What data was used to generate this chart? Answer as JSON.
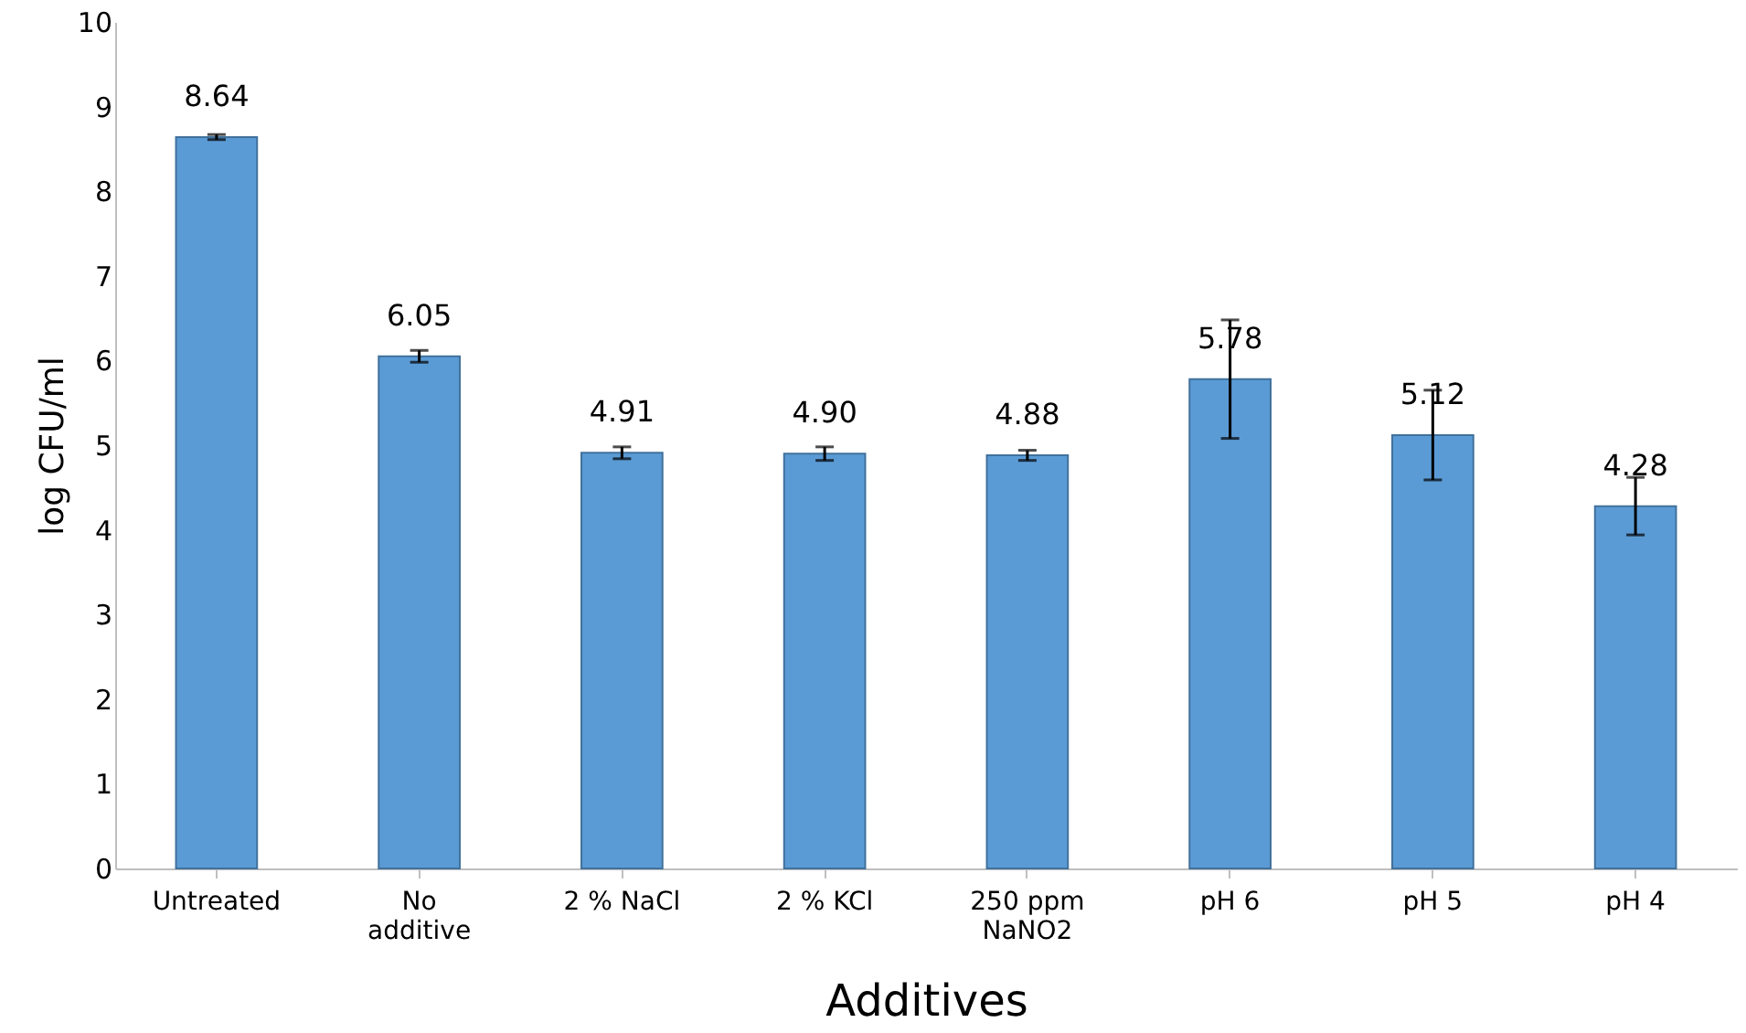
{
  "chart_data": {
    "type": "bar",
    "xlabel": "Additives",
    "ylabel": "log CFU/ml",
    "categories": [
      "Untreated",
      "No additive",
      "2 % NaCl",
      "2 % KCl",
      "250 ppm NaNO2",
      "pH 6",
      "pH 5",
      "pH 4"
    ],
    "values": [
      8.64,
      6.05,
      4.91,
      4.9,
      4.88,
      5.78,
      5.12,
      4.28
    ],
    "errors": [
      0.03,
      0.07,
      0.07,
      0.08,
      0.06,
      0.7,
      0.53,
      0.34
    ],
    "value_labels": [
      "8.64",
      "6.05",
      "4.91",
      "4.90",
      "4.88",
      "5.78",
      "5.12",
      "4.28"
    ],
    "color": "#5b9bd5",
    "ylim": [
      0,
      10
    ],
    "yticks": [
      0,
      1,
      2,
      3,
      4,
      5,
      6,
      7,
      8,
      9,
      10
    ],
    "grid": false
  }
}
